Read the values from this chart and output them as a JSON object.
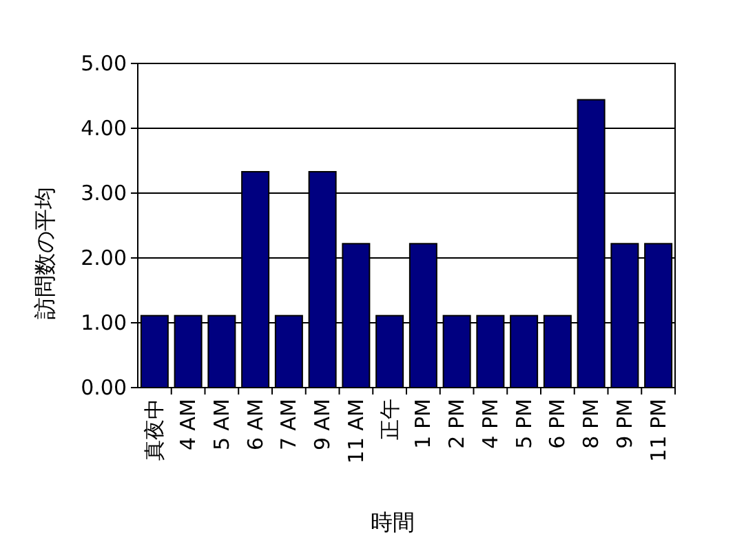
{
  "chart_data": {
    "type": "bar",
    "xlabel": "時間",
    "ylabel": "訪問数の平均",
    "categories": [
      "真夜中",
      "4 AM",
      "5 AM",
      "6 AM",
      "7 AM",
      "9 AM",
      "11 AM",
      "正午",
      "1 PM",
      "2 PM",
      "4 PM",
      "5 PM",
      "6 PM",
      "8 PM",
      "9 PM",
      "11 PM"
    ],
    "values": [
      1.11,
      1.11,
      1.11,
      3.33,
      1.11,
      3.33,
      2.22,
      1.11,
      2.22,
      1.11,
      1.11,
      1.11,
      1.11,
      4.44,
      2.22,
      2.22
    ],
    "color": "#000080",
    "ylim": [
      0,
      5
    ],
    "yticks": [
      {
        "value": 0,
        "label": "0.00"
      },
      {
        "value": 1,
        "label": "1.00"
      },
      {
        "value": 2,
        "label": "2.00"
      },
      {
        "value": 3,
        "label": "3.00"
      },
      {
        "value": 4,
        "label": "4.00"
      },
      {
        "value": 5,
        "label": "5.00"
      }
    ],
    "grid": "y"
  }
}
